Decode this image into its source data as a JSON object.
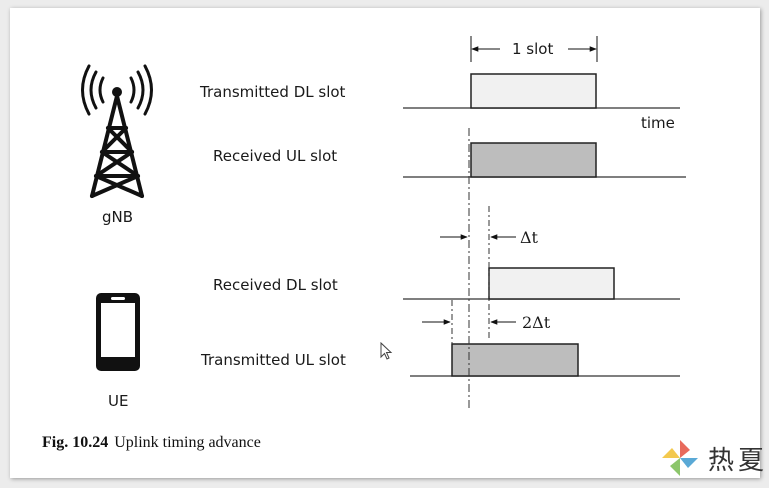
{
  "diagram": {
    "slot_length_label": "1 slot",
    "time_label": "time",
    "delta_label": "Δt",
    "two_delta_label": "2Δt",
    "rows": [
      {
        "label": "Transmitted DL slot",
        "fill": "#f1f1f1"
      },
      {
        "label": "Received UL slot",
        "fill": "#bdbdbd"
      },
      {
        "label": "Received DL slot",
        "fill": "#f1f1f1"
      },
      {
        "label": "Transmitted UL slot",
        "fill": "#bdbdbd"
      }
    ],
    "nodes": [
      {
        "label": "gNB",
        "icon": "tower-icon"
      },
      {
        "label": "UE",
        "icon": "phone-icon"
      }
    ]
  },
  "caption": {
    "number": "Fig. 10.24",
    "text": "Uplink timing advance"
  },
  "watermark": {
    "text": "热夏"
  }
}
